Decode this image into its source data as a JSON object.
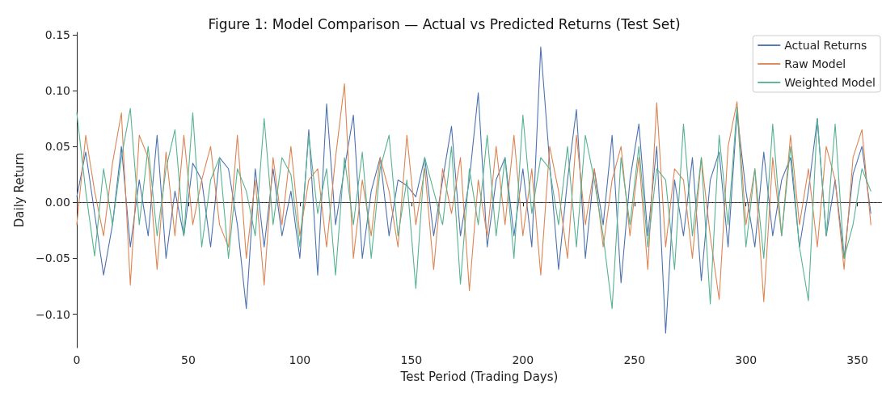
{
  "chart_data": {
    "type": "line",
    "title": "Figure 1: Model Comparison — Actual vs Predicted Returns (Test Set)",
    "xlabel": "Test Period (Trading Days)",
    "ylabel": "Daily Return",
    "x": [
      0,
      4,
      8,
      12,
      16,
      20,
      24,
      28,
      32,
      36,
      40,
      44,
      48,
      52,
      56,
      60,
      64,
      68,
      72,
      76,
      80,
      84,
      88,
      92,
      96,
      100,
      104,
      108,
      112,
      116,
      120,
      124,
      128,
      132,
      136,
      140,
      144,
      148,
      152,
      156,
      160,
      164,
      168,
      172,
      176,
      180,
      184,
      188,
      192,
      196,
      200,
      204,
      208,
      212,
      216,
      220,
      224,
      228,
      232,
      236,
      240,
      244,
      248,
      252,
      256,
      260,
      264,
      268,
      272,
      276,
      280,
      284,
      288,
      292,
      296,
      300,
      304,
      308,
      312,
      316,
      320,
      324,
      328,
      332,
      336,
      340,
      344,
      348,
      352,
      356
    ],
    "series": [
      {
        "name": "Actual Returns",
        "color": "#4c72b0",
        "values": [
          0.005,
          0.045,
          -0.01,
          -0.065,
          -0.02,
          0.05,
          -0.04,
          0.02,
          -0.03,
          0.06,
          -0.05,
          0.01,
          -0.03,
          0.035,
          0.02,
          -0.04,
          0.04,
          0.03,
          -0.02,
          -0.095,
          0.03,
          -0.04,
          0.03,
          -0.03,
          0.01,
          -0.05,
          0.065,
          -0.065,
          0.088,
          -0.02,
          0.03,
          0.078,
          -0.05,
          0.01,
          0.04,
          -0.03,
          0.02,
          0.015,
          0.005,
          0.04,
          -0.03,
          0.02,
          0.068,
          -0.03,
          0.02,
          0.098,
          -0.04,
          0.02,
          0.04,
          -0.03,
          0.03,
          -0.04,
          0.139,
          0.035,
          -0.06,
          0.02,
          0.083,
          -0.05,
          0.03,
          -0.02,
          0.06,
          -0.072,
          0.02,
          0.07,
          -0.03,
          0.05,
          -0.117,
          0.02,
          -0.03,
          0.04,
          -0.07,
          0.02,
          0.045,
          -0.04,
          0.08,
          0.01,
          -0.04,
          0.045,
          -0.03,
          0.02,
          0.04,
          -0.04,
          0.01,
          0.075,
          -0.03,
          0.02,
          -0.05,
          0.025,
          0.05,
          -0.01
        ]
      },
      {
        "name": "Raw Model",
        "color": "#dd8452",
        "values": [
          -0.02,
          0.06,
          0.01,
          -0.03,
          0.035,
          0.08,
          -0.074,
          0.06,
          0.04,
          -0.06,
          0.045,
          -0.03,
          0.06,
          -0.02,
          0.02,
          0.05,
          -0.02,
          -0.04,
          0.06,
          -0.05,
          0.02,
          -0.074,
          0.04,
          -0.02,
          0.05,
          -0.03,
          0.02,
          0.03,
          -0.04,
          0.04,
          0.106,
          -0.05,
          0.02,
          -0.03,
          0.04,
          0.01,
          -0.04,
          0.06,
          -0.02,
          0.03,
          -0.06,
          0.03,
          -0.01,
          0.04,
          -0.079,
          0.02,
          -0.03,
          0.05,
          -0.02,
          0.06,
          -0.03,
          0.03,
          -0.065,
          0.05,
          0.01,
          -0.05,
          0.06,
          -0.02,
          0.03,
          -0.04,
          0.02,
          0.05,
          -0.03,
          0.04,
          -0.06,
          0.089,
          -0.04,
          0.03,
          0.02,
          -0.05,
          0.04,
          -0.03,
          -0.087,
          0.05,
          0.09,
          -0.02,
          0.03,
          -0.089,
          0.04,
          -0.03,
          0.06,
          -0.02,
          0.03,
          -0.04,
          0.05,
          0.02,
          -0.06,
          0.04,
          0.065,
          -0.02
        ]
      },
      {
        "name": "Weighted Model",
        "color": "#55b38f",
        "values": [
          0.08,
          0.01,
          -0.048,
          0.03,
          -0.02,
          0.04,
          0.084,
          -0.02,
          0.05,
          -0.03,
          0.03,
          0.065,
          -0.03,
          0.08,
          -0.04,
          0.02,
          0.04,
          -0.05,
          0.03,
          0.01,
          -0.03,
          0.075,
          -0.02,
          0.04,
          0.025,
          -0.04,
          0.06,
          -0.01,
          0.03,
          -0.065,
          0.04,
          -0.02,
          0.045,
          -0.05,
          0.03,
          0.06,
          -0.03,
          0.02,
          -0.077,
          0.04,
          0.01,
          -0.02,
          0.05,
          -0.073,
          0.03,
          -0.02,
          0.06,
          -0.03,
          0.04,
          -0.05,
          0.078,
          -0.01,
          0.04,
          0.03,
          -0.02,
          0.05,
          -0.04,
          0.06,
          0.02,
          -0.03,
          -0.095,
          0.04,
          -0.02,
          0.05,
          -0.04,
          0.03,
          0.02,
          -0.06,
          0.07,
          -0.03,
          0.04,
          -0.091,
          0.06,
          -0.02,
          0.085,
          -0.04,
          0.03,
          -0.05,
          0.07,
          -0.03,
          0.05,
          -0.04,
          -0.088,
          0.075,
          -0.03,
          0.07,
          -0.05,
          -0.02,
          0.03,
          0.01
        ]
      }
    ],
    "xlim": [
      0,
      361
    ],
    "xticks": [
      0,
      50,
      100,
      150,
      200,
      250,
      300,
      350
    ],
    "ylim": [
      -0.13,
      0.152
    ],
    "yticks": [
      {
        "value": -0.1,
        "label": "−0.10"
      },
      {
        "value": -0.05,
        "label": "−0.05"
      },
      {
        "value": 0,
        "label": "0.00"
      },
      {
        "value": 0.05,
        "label": "0.05"
      },
      {
        "value": 0.1,
        "label": "0.10"
      },
      {
        "value": 0.15,
        "label": "0.15"
      }
    ],
    "ref_lines": [
      {
        "axis": "y",
        "value": 0,
        "color": "#555555",
        "line_style": "dashed"
      }
    ],
    "grid": false,
    "legend": "top right",
    "marker": "none",
    "line_style": "solid"
  }
}
